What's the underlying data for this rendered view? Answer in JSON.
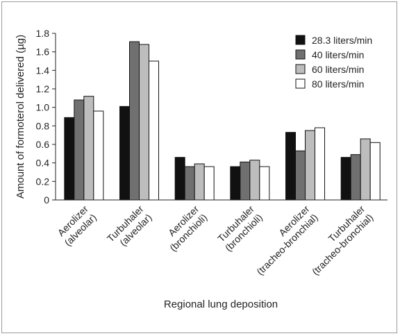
{
  "chart_data": {
    "type": "bar",
    "xlabel": "Regional lung deposition",
    "ylabel": "Amount of formoterol delivered (µg)",
    "ylim": [
      0,
      1.8
    ],
    "yticks": [
      "0",
      "0.2",
      "0.4",
      "0.6",
      "0.8",
      "1.0",
      "1.2",
      "1.4",
      "1.6",
      "1.8"
    ],
    "grid": false,
    "legend_position": "top-right",
    "categories": [
      [
        "Aerolizer",
        "(alveolar)"
      ],
      [
        "Turbuhaler",
        "(alveolar)"
      ],
      [
        "Aerolizer",
        "(bronchioli)"
      ],
      [
        "Turbuhaler",
        "(bronchioli)"
      ],
      [
        "Aerolizer",
        "(tracheo-bronchial)"
      ],
      [
        "Turbuhaler",
        "(tracheo-bronchial)"
      ]
    ],
    "series": [
      {
        "name": "28.3 liters/min",
        "color": "#111111",
        "values": [
          0.89,
          1.01,
          0.46,
          0.36,
          0.73,
          0.46
        ]
      },
      {
        "name": "40 liters/min",
        "color": "#707070",
        "values": [
          1.08,
          1.71,
          0.36,
          0.41,
          0.53,
          0.49
        ]
      },
      {
        "name": "60 liters/min",
        "color": "#bdbdbd",
        "values": [
          1.12,
          1.68,
          0.39,
          0.43,
          0.75,
          0.66
        ]
      },
      {
        "name": "80 liters/min",
        "color": "#ffffff",
        "values": [
          0.96,
          1.5,
          0.36,
          0.36,
          0.78,
          0.62
        ]
      }
    ]
  }
}
